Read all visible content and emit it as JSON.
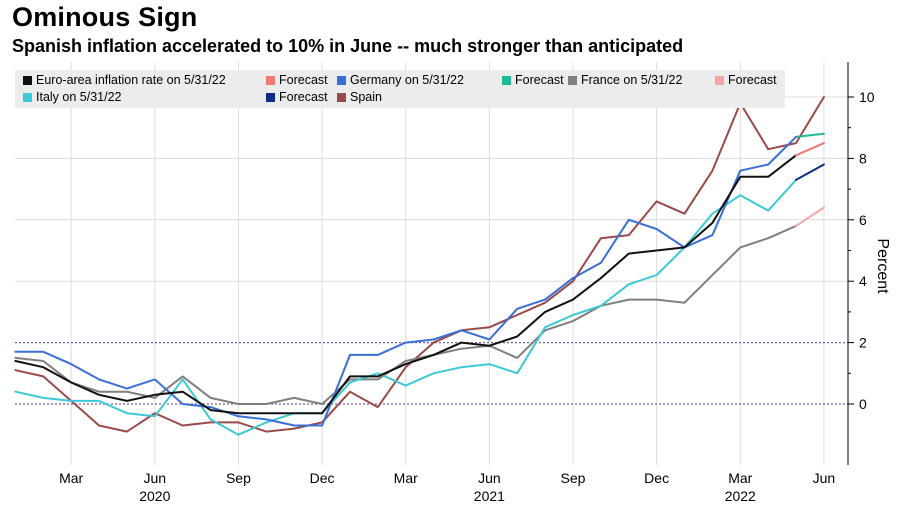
{
  "header": {
    "title": "Ominous Sign",
    "subtitle": "Spanish inflation accelerated to 10% in June -- much stronger than anticipated"
  },
  "chart_data": {
    "type": "line",
    "ylabel": "Percent",
    "ylim": [
      -2,
      11.5
    ],
    "yticks": [
      0,
      2,
      4,
      6,
      8,
      10
    ],
    "reference_lines": [
      0,
      2
    ],
    "x_months": [
      "2020-01",
      "2020-02",
      "2020-03",
      "2020-04",
      "2020-05",
      "2020-06",
      "2020-07",
      "2020-08",
      "2020-09",
      "2020-10",
      "2020-11",
      "2020-12",
      "2021-01",
      "2021-02",
      "2021-03",
      "2021-04",
      "2021-05",
      "2021-06",
      "2021-07",
      "2021-08",
      "2021-09",
      "2021-10",
      "2021-11",
      "2021-12",
      "2022-01",
      "2022-02",
      "2022-03",
      "2022-04",
      "2022-05",
      "2022-06"
    ],
    "x_tick_labels": [
      {
        "month": "2020-03",
        "label": "Mar"
      },
      {
        "month": "2020-06",
        "label": "Jun"
      },
      {
        "month": "2020-09",
        "label": "Sep"
      },
      {
        "month": "2020-12",
        "label": "Dec"
      },
      {
        "month": "2021-03",
        "label": "Mar"
      },
      {
        "month": "2021-06",
        "label": "Jun"
      },
      {
        "month": "2021-09",
        "label": "Sep"
      },
      {
        "month": "2021-12",
        "label": "Dec"
      },
      {
        "month": "2022-03",
        "label": "Mar"
      },
      {
        "month": "2022-06",
        "label": "Jun"
      }
    ],
    "year_labels": [
      {
        "month": "2020-06",
        "label": "2020"
      },
      {
        "month": "2021-06",
        "label": "2021"
      },
      {
        "month": "2022-03",
        "label": "2022"
      }
    ],
    "series": [
      {
        "name": "Spain",
        "color": "#9b4a4a",
        "values": [
          1.1,
          0.9,
          0.1,
          -0.7,
          -0.9,
          -0.3,
          -0.7,
          -0.6,
          -0.6,
          -0.9,
          -0.8,
          -0.6,
          0.4,
          -0.1,
          1.2,
          2.0,
          2.4,
          2.5,
          2.9,
          3.3,
          4.0,
          5.4,
          5.5,
          6.6,
          6.2,
          7.6,
          9.8,
          8.3,
          8.5,
          10.0
        ]
      },
      {
        "name": "France on 5/31/22",
        "color": "#7f7f7f",
        "values": [
          1.5,
          1.4,
          0.7,
          0.4,
          0.4,
          0.2,
          0.9,
          0.2,
          0.0,
          0.0,
          0.2,
          0.0,
          0.8,
          0.8,
          1.4,
          1.6,
          1.8,
          1.9,
          1.5,
          2.4,
          2.7,
          3.2,
          3.4,
          3.4,
          3.3,
          4.2,
          5.1,
          5.4,
          5.8,
          null
        ]
      },
      {
        "name": "Forecast",
        "color": "#f4a6a6",
        "values": [
          null,
          null,
          null,
          null,
          null,
          null,
          null,
          null,
          null,
          null,
          null,
          null,
          null,
          null,
          null,
          null,
          null,
          null,
          null,
          null,
          null,
          null,
          null,
          null,
          null,
          null,
          null,
          null,
          5.8,
          6.4
        ]
      },
      {
        "name": "Italy on 5/31/22",
        "color": "#3cc9d6",
        "values": [
          0.4,
          0.2,
          0.1,
          0.1,
          -0.3,
          -0.4,
          0.8,
          -0.5,
          -1.0,
          -0.6,
          -0.3,
          -0.3,
          0.7,
          1.0,
          0.6,
          1.0,
          1.2,
          1.3,
          1.0,
          2.5,
          2.9,
          3.2,
          3.9,
          4.2,
          5.1,
          6.2,
          6.8,
          6.3,
          7.3,
          null
        ]
      },
      {
        "name": "Forecast",
        "color": "#1fba93",
        "values": [
          null,
          null,
          null,
          null,
          null,
          null,
          null,
          null,
          null,
          null,
          null,
          null,
          null,
          null,
          null,
          null,
          null,
          null,
          null,
          null,
          null,
          null,
          null,
          null,
          null,
          null,
          null,
          null,
          8.7,
          8.8
        ]
      },
      {
        "name": "Germany on 5/31/22",
        "color": "#3a6fd8",
        "values": [
          1.7,
          1.7,
          1.3,
          0.8,
          0.5,
          0.8,
          0.0,
          -0.1,
          -0.4,
          -0.5,
          -0.7,
          -0.7,
          1.6,
          1.6,
          2.0,
          2.1,
          2.4,
          2.1,
          3.1,
          3.4,
          4.1,
          4.6,
          6.0,
          5.7,
          5.1,
          5.5,
          7.6,
          7.8,
          8.7,
          null
        ]
      },
      {
        "name": "Forecast",
        "color": "#0b2d82",
        "values": [
          null,
          null,
          null,
          null,
          null,
          null,
          null,
          null,
          null,
          null,
          null,
          null,
          null,
          null,
          null,
          null,
          null,
          null,
          null,
          null,
          null,
          null,
          null,
          null,
          null,
          null,
          null,
          null,
          7.3,
          7.8
        ]
      },
      {
        "name": "Euro-area inflation rate on 5/31/22",
        "color": "#111111",
        "values": [
          1.4,
          1.2,
          0.7,
          0.3,
          0.1,
          0.3,
          0.4,
          -0.2,
          -0.3,
          -0.3,
          -0.3,
          -0.3,
          0.9,
          0.9,
          1.3,
          1.6,
          2.0,
          1.9,
          2.2,
          3.0,
          3.4,
          4.1,
          4.9,
          5.0,
          5.1,
          5.9,
          7.4,
          7.4,
          8.1,
          null
        ]
      },
      {
        "name": "Forecast",
        "color": "#f07a72",
        "values": [
          null,
          null,
          null,
          null,
          null,
          null,
          null,
          null,
          null,
          null,
          null,
          null,
          null,
          null,
          null,
          null,
          null,
          null,
          null,
          null,
          null,
          null,
          null,
          null,
          null,
          null,
          null,
          null,
          8.1,
          8.5
        ]
      }
    ],
    "legend": {
      "placement": "top-left",
      "rows": [
        [
          {
            "label": "Euro-area inflation rate on 5/31/22",
            "color": "#111111"
          },
          {
            "label": "Forecast",
            "color": "#f07a72"
          },
          {
            "label": "Germany on 5/31/22",
            "color": "#3a6fd8"
          },
          {
            "label": "Forecast",
            "color": "#1fba93"
          },
          {
            "label": "France on 5/31/22",
            "color": "#7f7f7f"
          },
          {
            "label": "Forecast",
            "color": "#f4a6a6"
          }
        ],
        [
          {
            "label": "Italy on 5/31/22",
            "color": "#3cc9d6"
          },
          {
            "label": "Forecast",
            "color": "#0b2d82"
          },
          {
            "label": "Spain",
            "color": "#9b4a4a"
          }
        ]
      ]
    },
    "grid": true
  }
}
